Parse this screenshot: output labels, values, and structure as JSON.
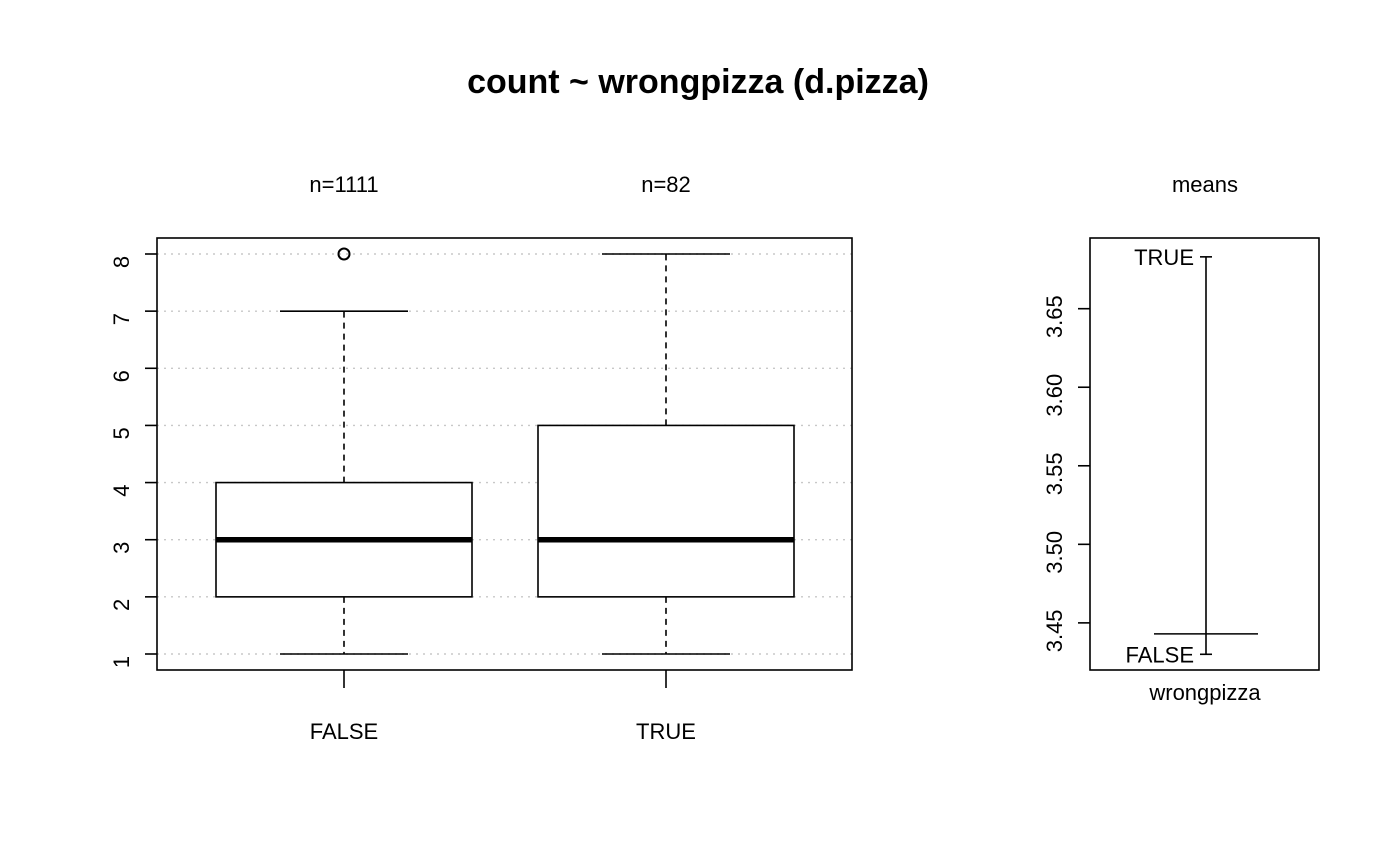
{
  "title": "count ~ wrongpizza (d.pizza)",
  "chart_data": [
    {
      "type": "box",
      "title": "",
      "xlabel": "",
      "ylabel": "",
      "ylim": [
        0.72,
        8.28
      ],
      "yticks": [
        1,
        2,
        3,
        4,
        5,
        6,
        7,
        8
      ],
      "grid": true,
      "categories": [
        "FALSE",
        "TRUE"
      ],
      "group_labels": [
        "n=1111",
        "n=82"
      ],
      "boxes": [
        {
          "category": "FALSE",
          "whisker_low": 1,
          "q1": 2,
          "median": 3,
          "q3": 4,
          "whisker_high": 7,
          "outliers": [
            8
          ]
        },
        {
          "category": "TRUE",
          "whisker_low": 1,
          "q1": 2,
          "median": 3,
          "q3": 5,
          "whisker_high": 8,
          "outliers": []
        }
      ]
    },
    {
      "type": "means",
      "title": "means",
      "xlabel": "wrongpizza",
      "ylim": [
        3.42,
        3.695
      ],
      "yticks": [
        "3.45",
        "3.50",
        "3.55",
        "3.60",
        "3.65"
      ],
      "overall_mean": 3.443,
      "means": [
        {
          "label": "TRUE",
          "value": 3.683
        },
        {
          "label": "FALSE",
          "value": 3.43
        }
      ]
    }
  ]
}
